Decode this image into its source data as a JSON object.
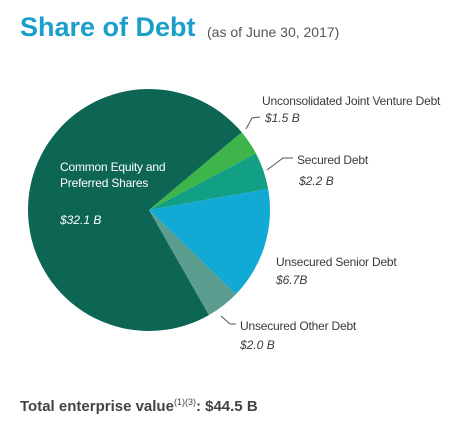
{
  "chart_data": {
    "type": "pie",
    "title": "Share of Debt",
    "subtitle": "(as of June 30, 2017)",
    "categories": [
      "Unconsolidated Joint Venture Debt",
      "Secured Debt",
      "Unsecured Senior Debt",
      "Unsecured Other Debt",
      "Common Equity and Preferred Shares"
    ],
    "values": [
      1.5,
      2.2,
      6.7,
      2.0,
      32.1
    ],
    "value_labels": [
      "$1.5 B",
      "$2.2 B",
      "$6.7B",
      "$2.0 B",
      "$32.1 B"
    ],
    "colors": [
      "#3db54a",
      "#12a085",
      "#12aad4",
      "#5b9e8f",
      "#0d6654"
    ],
    "total": {
      "label": "Total enterprise value",
      "note": "(1)(3)",
      "value": ": $44.5 B"
    }
  }
}
